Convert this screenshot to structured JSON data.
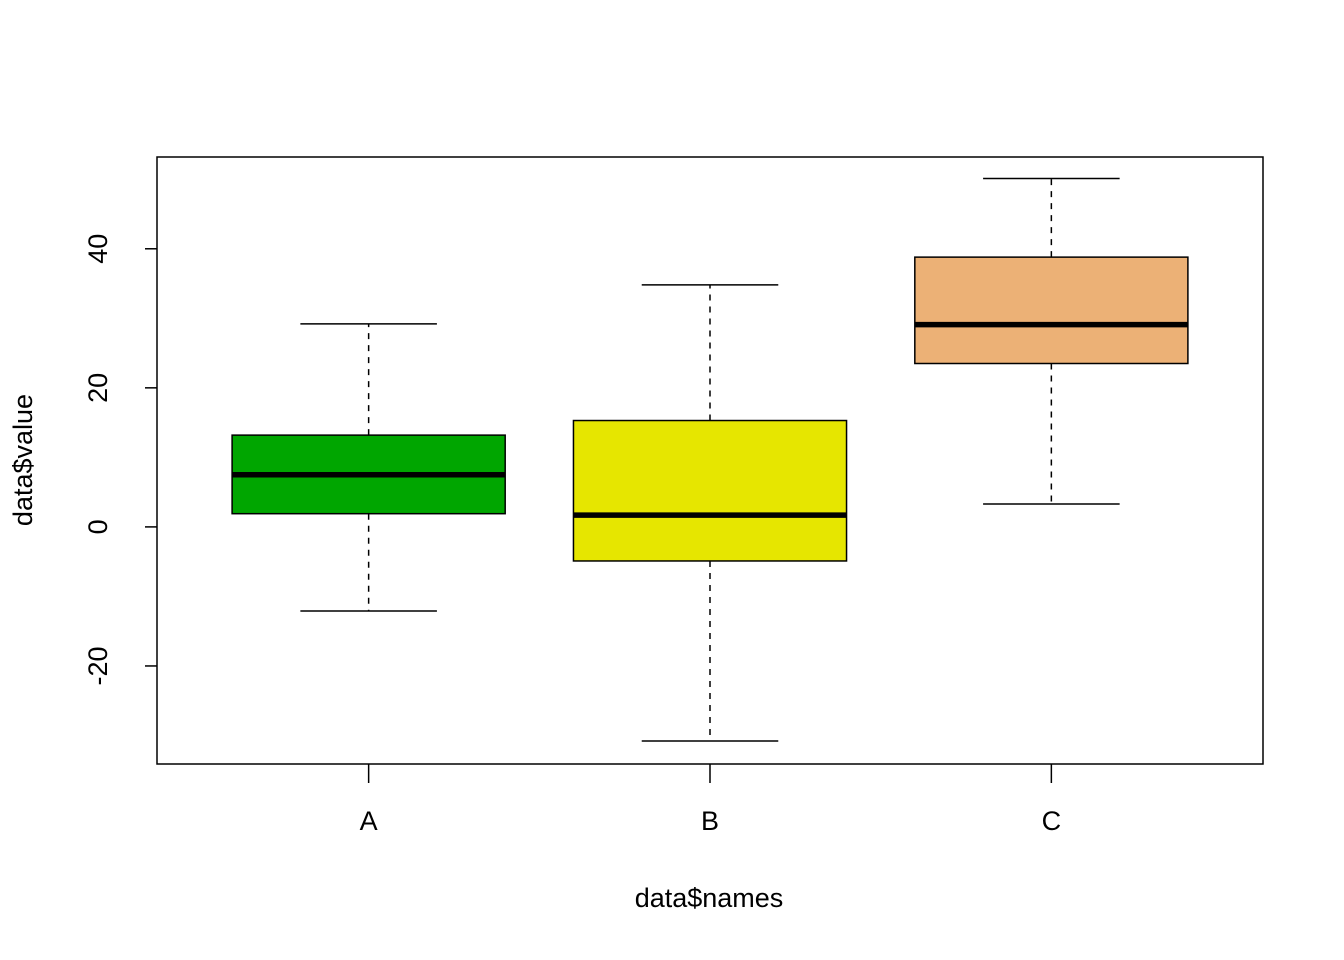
{
  "chart_data": {
    "type": "box",
    "x_label": "data$names",
    "y_label": "data$value",
    "categories": [
      "A",
      "B",
      "C"
    ],
    "colors": [
      "#00a600",
      "#e6e600",
      "#ecb176"
    ],
    "whislo": [
      -12.1,
      -30.8,
      3.3
    ],
    "q1": [
      1.9,
      -4.9,
      23.5
    ],
    "median": [
      7.5,
      1.7,
      29.1
    ],
    "q3": [
      13.2,
      15.3,
      38.8
    ],
    "whishi": [
      29.2,
      34.8,
      50.1
    ],
    "ylim": [
      -34.1,
      53.2
    ],
    "yticks": [
      -20,
      0,
      20,
      40
    ]
  }
}
